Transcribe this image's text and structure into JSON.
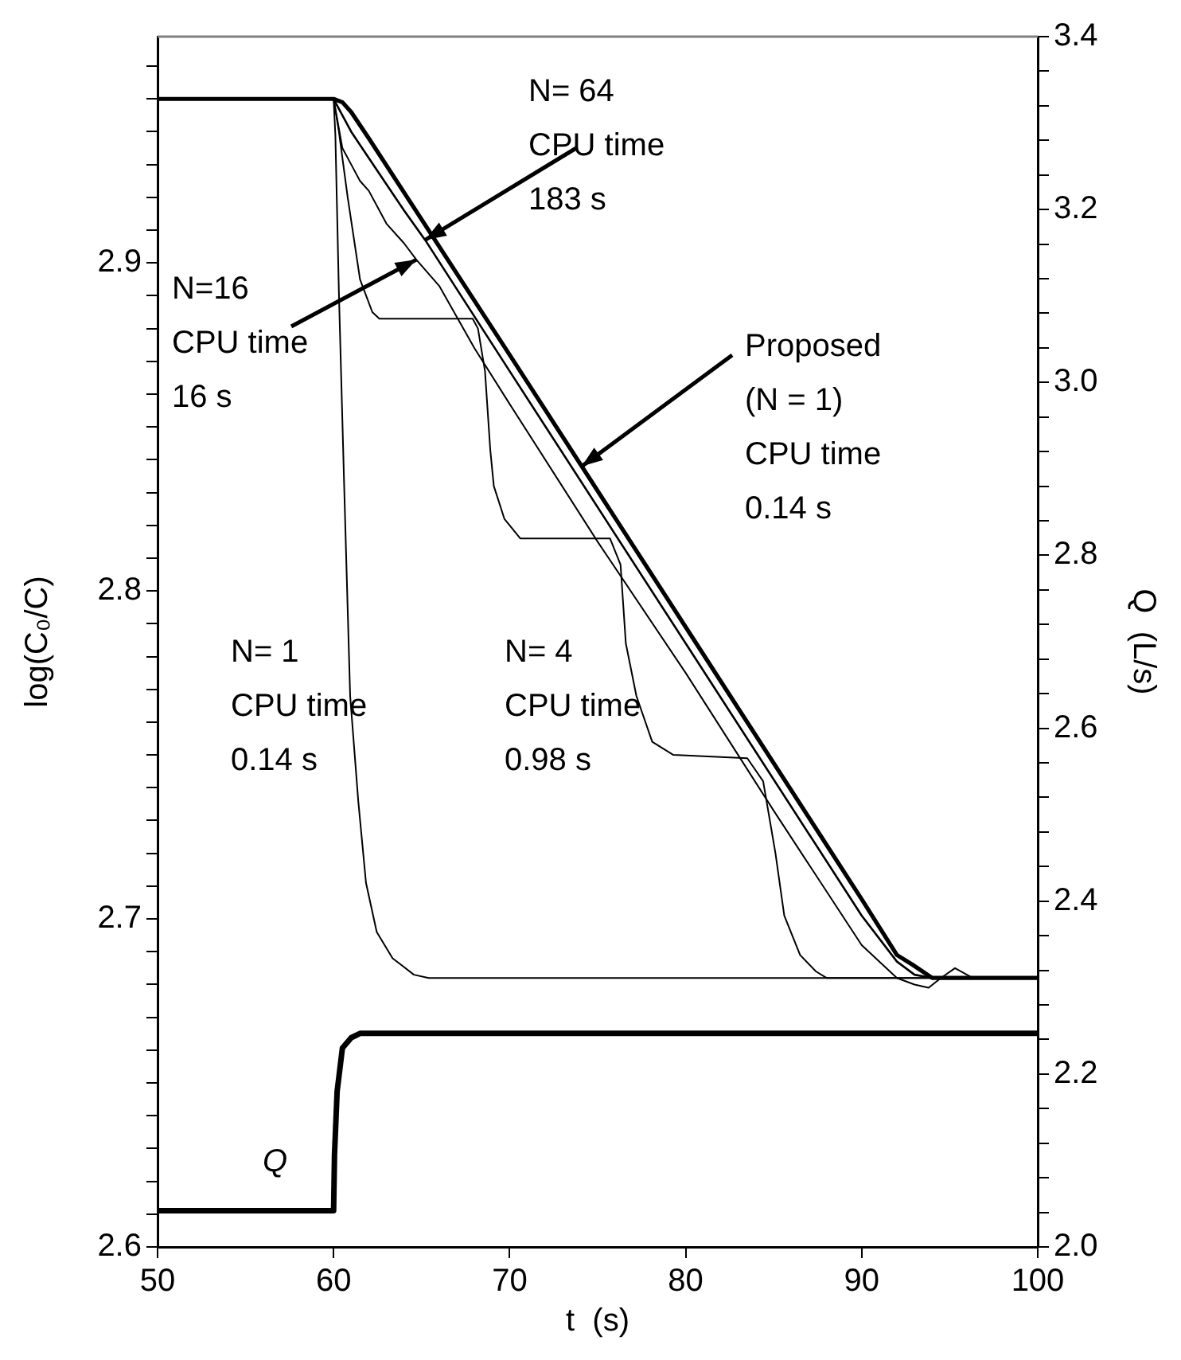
{
  "chart_data": {
    "type": "line",
    "xlabel": "t  (s)",
    "ylabel": "log(C₀/C)",
    "y2label": "Q  (L/s)",
    "xlim": [
      50,
      100
    ],
    "xticks": [
      50,
      60,
      70,
      80,
      90,
      100
    ],
    "ylim": [
      2.6,
      2.969
    ],
    "yticks": [
      2.6,
      {
        "value": 2.61,
        "label": null
      },
      {
        "value": 2.62,
        "label": null
      },
      {
        "value": 2.63,
        "label": null
      },
      {
        "value": 2.64,
        "label": null
      },
      {
        "value": 2.65,
        "label": null
      },
      {
        "value": 2.66,
        "label": null
      },
      {
        "value": 2.67,
        "label": null
      },
      {
        "value": 2.68,
        "label": null
      },
      {
        "value": 2.69,
        "label": null
      },
      2.7,
      {
        "value": 2.71,
        "label": null
      },
      {
        "value": 2.72,
        "label": null
      },
      {
        "value": 2.73,
        "label": null
      },
      {
        "value": 2.74,
        "label": null
      },
      {
        "value": 2.75,
        "label": null
      },
      {
        "value": 2.76,
        "label": null
      },
      {
        "value": 2.77,
        "label": null
      },
      {
        "value": 2.78,
        "label": null
      },
      {
        "value": 2.79,
        "label": null
      },
      2.8,
      {
        "value": 2.81,
        "label": null
      },
      {
        "value": 2.82,
        "label": null
      },
      {
        "value": 2.83,
        "label": null
      },
      {
        "value": 2.84,
        "label": null
      },
      {
        "value": 2.85,
        "label": null
      },
      {
        "value": 2.86,
        "label": null
      },
      {
        "value": 2.87,
        "label": null
      },
      {
        "value": 2.88,
        "label": null
      },
      {
        "value": 2.89,
        "label": null
      },
      2.9,
      {
        "value": 2.91,
        "label": null
      },
      {
        "value": 2.92,
        "label": null
      },
      {
        "value": 2.93,
        "label": null
      },
      {
        "value": 2.94,
        "label": null
      },
      {
        "value": 2.95,
        "label": null
      },
      {
        "value": 2.96,
        "label": null
      }
    ],
    "y2lim": [
      2.0,
      3.4
    ],
    "y2ticks": [
      {
        "value": 2.0,
        "label": "2.0"
      },
      {
        "value": 2.04,
        "label": null
      },
      {
        "value": 2.08,
        "label": null
      },
      {
        "value": 2.12,
        "label": null
      },
      {
        "value": 2.16,
        "label": null
      },
      2.2,
      {
        "value": 2.24,
        "label": null
      },
      {
        "value": 2.28,
        "label": null
      },
      {
        "value": 2.32,
        "label": null
      },
      {
        "value": 2.36,
        "label": null
      },
      2.4,
      {
        "value": 2.44,
        "label": null
      },
      {
        "value": 2.48,
        "label": null
      },
      {
        "value": 2.52,
        "label": null
      },
      {
        "value": 2.56,
        "label": null
      },
      2.6,
      {
        "value": 2.64,
        "label": null
      },
      {
        "value": 2.68,
        "label": null
      },
      {
        "value": 2.72,
        "label": null
      },
      {
        "value": 2.76,
        "label": null
      },
      2.8,
      {
        "value": 2.84,
        "label": null
      },
      {
        "value": 2.88,
        "label": null
      },
      {
        "value": 2.92,
        "label": null
      },
      {
        "value": 2.96,
        "label": null
      },
      {
        "value": 3.0,
        "label": "3.0"
      },
      {
        "value": 3.04,
        "label": null
      },
      {
        "value": 3.08,
        "label": null
      },
      {
        "value": 3.12,
        "label": null
      },
      {
        "value": 3.16,
        "label": null
      },
      3.2,
      {
        "value": 3.24,
        "label": null
      },
      {
        "value": 3.28,
        "label": null
      },
      {
        "value": 3.32,
        "label": null
      },
      {
        "value": 3.36,
        "label": null
      },
      3.4
    ],
    "marker": "none",
    "line_style": "solid",
    "grid": false,
    "series": [
      {
        "color": "#000000",
        "x": [
          50,
          60,
          60.1,
          60.3,
          60.6,
          60.94,
          61.4,
          61.84,
          62.45,
          63.35,
          64.56,
          65.4,
          100
        ],
        "values": [
          2.95,
          2.95,
          2.939,
          2.891,
          2.832,
          2.768,
          2.736,
          2.711,
          2.696,
          2.688,
          2.683,
          2.682,
          2.682
        ]
      },
      {
        "color": "#000000",
        "x": [
          50,
          60,
          60.3,
          60.8,
          61.5,
          62.2,
          62.6,
          67.9,
          68.2,
          68.6,
          68.9,
          69.1,
          69.7,
          70.6,
          75.7,
          76.3,
          76.6,
          77.2,
          78.1,
          79.3,
          83.5,
          84.4,
          85.1,
          85.6,
          86.5,
          87.4,
          88,
          100
        ],
        "values": [
          2.95,
          2.95,
          2.94,
          2.92,
          2.895,
          2.885,
          2.883,
          2.883,
          2.88,
          2.867,
          2.843,
          2.832,
          2.822,
          2.816,
          2.816,
          2.808,
          2.784,
          2.768,
          2.754,
          2.75,
          2.749,
          2.742,
          2.72,
          2.701,
          2.689,
          2.684,
          2.682,
          2.682
        ]
      },
      {
        "color": "#000000",
        "x": [
          50,
          60,
          60.5,
          61,
          61.5,
          62,
          63,
          64,
          64.7,
          66,
          68,
          70,
          75,
          80,
          85,
          90,
          92,
          93,
          93.8,
          94.5,
          95.3,
          96.3,
          100
        ],
        "values": [
          2.95,
          2.95,
          2.935,
          2.93,
          2.925,
          2.922,
          2.912,
          2.906,
          2.901,
          2.893,
          2.874,
          2.857,
          2.815,
          2.775,
          2.733,
          2.692,
          2.682,
          2.68,
          2.679,
          2.682,
          2.685,
          2.682,
          2.682
        ]
      },
      {
        "color": "#000000",
        "x": [
          50,
          60,
          60.5,
          61,
          62,
          64,
          65.2,
          70,
          80,
          90,
          92,
          93,
          94,
          100
        ],
        "values": [
          2.95,
          2.95,
          2.945,
          2.94,
          2.932,
          2.916,
          2.907,
          2.867,
          2.784,
          2.701,
          2.687,
          2.683,
          2.682,
          2.682
        ]
      },
      {
        "color": "#000000",
        "x": [
          50,
          60,
          60.5,
          61,
          62,
          70,
          80,
          90,
          92,
          92.9,
          94,
          100
        ],
        "values": [
          2.95,
          2.95,
          2.949,
          2.946,
          2.938,
          2.872,
          2.789,
          2.706,
          2.689,
          2.686,
          2.682,
          2.682
        ]
      },
      {
        "name": "Q",
        "color": "#000000",
        "axis": "y2",
        "x": [
          50,
          60,
          60.05,
          60.2,
          60.5,
          61,
          61.5,
          100
        ],
        "values": [
          2.042,
          2.042,
          2.106,
          2.18,
          2.23,
          2.242,
          2.247,
          2.247
        ]
      }
    ],
    "annotations": [
      {
        "text": "N= 64\nCPU time\n183 s",
        "x": 65.2,
        "y": 2.907
      },
      {
        "text": "N=16\nCPU time\n16 s",
        "x": 64.7,
        "y": 2.901
      },
      {
        "text": "Proposed\n(N = 1)\nCPU time\n0.14 s",
        "x": 74.1,
        "y": 2.838
      },
      "N= 1\nCPU time\n0.14 s",
      "N= 4\nCPU time\n0.98 s"
    ]
  }
}
